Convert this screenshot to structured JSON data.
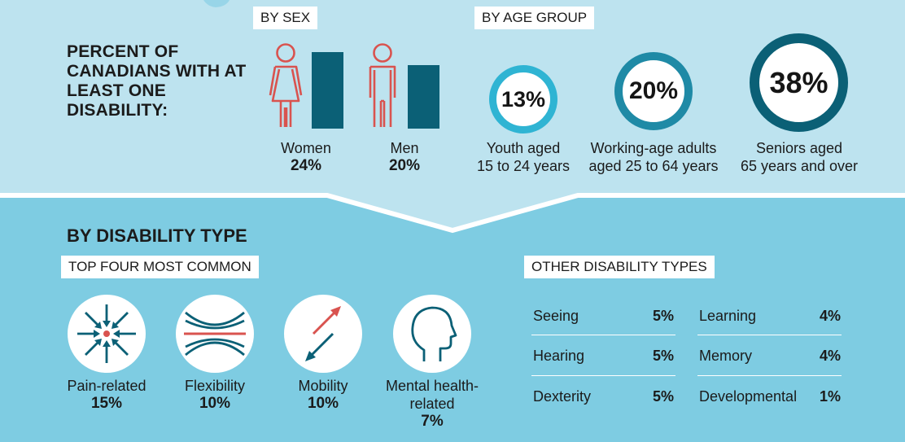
{
  "title": "PERCENT OF CANADIANS WITH AT LEAST ONE DISABILITY:",
  "by_sex": {
    "label": "BY SEX",
    "groups": [
      {
        "name": "Women",
        "value": "24%",
        "fraction": 0.24
      },
      {
        "name": "Men",
        "value": "20%",
        "fraction": 0.2
      }
    ]
  },
  "by_age": {
    "label": "BY AGE GROUP",
    "groups": [
      {
        "value": "13%",
        "line1": "Youth aged",
        "line2": "15 to 24 years"
      },
      {
        "value": "20%",
        "line1": "Working-age adults",
        "line2": "aged 25 to 64 years"
      },
      {
        "value": "38%",
        "line1": "Seniors aged",
        "line2": "65 years and over"
      }
    ]
  },
  "by_type": {
    "title": "BY DISABILITY TYPE",
    "top_label": "TOP FOUR MOST COMMON",
    "top": [
      {
        "name": "Pain-related",
        "value": "15%",
        "icon": "pain-arrows-icon"
      },
      {
        "name": "Flexibility",
        "value": "10%",
        "icon": "flexibility-curves-icon"
      },
      {
        "name": "Mobility",
        "value": "10%",
        "icon": "mobility-arrows-icon"
      },
      {
        "line1": "Mental health-",
        "line2": "related",
        "value": "7%",
        "icon": "head-profile-icon"
      }
    ],
    "other_label": "OTHER DISABILITY TYPES",
    "other": [
      {
        "name": "Seeing",
        "value": "5%"
      },
      {
        "name": "Hearing",
        "value": "5%"
      },
      {
        "name": "Dexterity",
        "value": "5%"
      },
      {
        "name": "Learning",
        "value": "4%"
      },
      {
        "name": "Memory",
        "value": "4%"
      },
      {
        "name": "Developmental",
        "value": "1%"
      }
    ]
  },
  "colors": {
    "top_panel": "#bde3ef",
    "bottom_panel": "#7ecce2",
    "bar": "#0b6076",
    "figure_outline": "#d9534f",
    "ring_small": "#2fb4d3",
    "ring_mid": "#1f8aa6",
    "ring_large": "#0b6076"
  }
}
